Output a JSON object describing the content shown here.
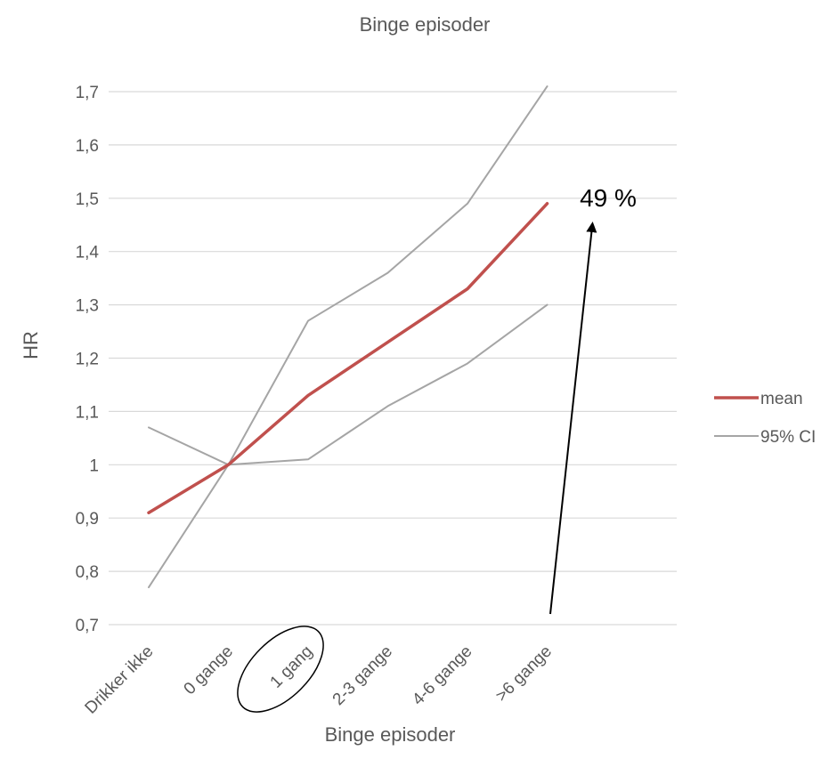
{
  "chart_data": {
    "type": "line",
    "title": "Binge episoder",
    "xlabel": "Binge episoder",
    "ylabel": "HR",
    "categories": [
      "Drikker ikke",
      "0 gange",
      "1 gang",
      "2-3 gange",
      "4-6 gange",
      ">6 gange"
    ],
    "ylim": [
      0.7,
      1.7
    ],
    "yticks": [
      "0,7",
      "0,8",
      "0,9",
      "1",
      "1,1",
      "1,2",
      "1,3",
      "1,4",
      "1,5",
      "1,6",
      "1,7"
    ],
    "grid": true,
    "legend_position": "right",
    "series": [
      {
        "name": "mean",
        "values": [
          0.91,
          1.0,
          1.13,
          1.23,
          1.33,
          1.49
        ],
        "color": "#c0504d"
      },
      {
        "name": "95% CI",
        "values": [
          1.07,
          1.0,
          1.27,
          1.36,
          1.49,
          1.71
        ],
        "color": "#a5a5a5"
      },
      {
        "name": "",
        "values": [
          0.77,
          1.0,
          1.01,
          1.11,
          1.19,
          1.3
        ],
        "color": "#a5a5a5"
      }
    ],
    "annotations": {
      "arrow_text": "49 %",
      "highlighted_category": "1 gang"
    }
  }
}
